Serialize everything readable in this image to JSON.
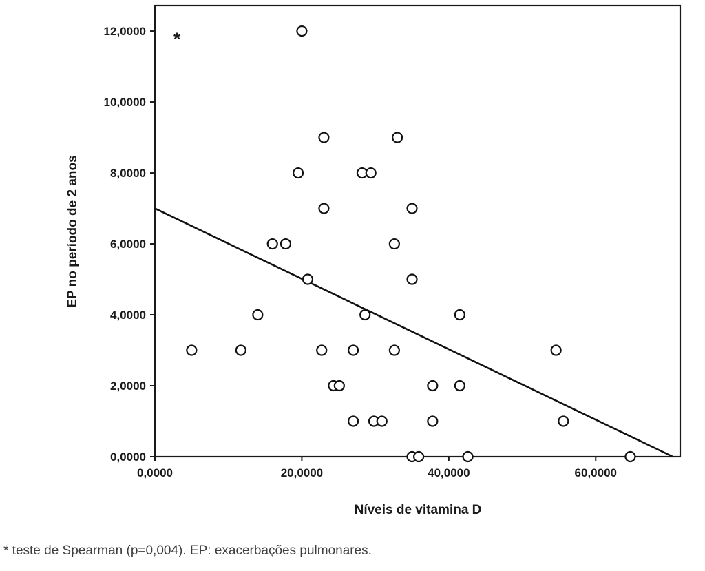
{
  "page": {
    "background": "#ffffff",
    "footnote": "* teste de Spearman (p=0,004). EP: exacerbações pulmonares."
  },
  "chart_data": {
    "type": "scatter",
    "title": "",
    "xlabel": "Níveis de vitamina D",
    "ylabel": "EP no período de 2 anos",
    "xlim": [
      0,
      71.5
    ],
    "ylim": [
      0,
      12.72
    ],
    "grid": false,
    "legend": "none",
    "x_ticks": [
      {
        "value": 0,
        "label": "0,0000"
      },
      {
        "value": 20,
        "label": "20,0000"
      },
      {
        "value": 40,
        "label": "40,0000"
      },
      {
        "value": 60,
        "label": "60,0000"
      }
    ],
    "y_ticks": [
      {
        "value": 0,
        "label": "0,0000"
      },
      {
        "value": 2,
        "label": "2,0000"
      },
      {
        "value": 4,
        "label": "4,0000"
      },
      {
        "value": 6,
        "label": "6,0000"
      },
      {
        "value": 8,
        "label": "8,0000"
      },
      {
        "value": 10,
        "label": "10,0000"
      },
      {
        "value": 12,
        "label": "12,0000"
      }
    ],
    "points": [
      [
        20,
        12
      ],
      [
        23,
        9
      ],
      [
        33,
        9
      ],
      [
        19.5,
        8
      ],
      [
        28.2,
        8
      ],
      [
        29.4,
        8
      ],
      [
        23,
        7
      ],
      [
        35,
        7
      ],
      [
        16,
        6
      ],
      [
        17.8,
        6
      ],
      [
        32.6,
        6
      ],
      [
        20.8,
        5
      ],
      [
        35,
        5
      ],
      [
        14,
        4
      ],
      [
        28.6,
        4
      ],
      [
        41.5,
        4
      ],
      [
        5,
        3
      ],
      [
        11.7,
        3
      ],
      [
        22.7,
        3
      ],
      [
        27,
        3
      ],
      [
        32.6,
        3
      ],
      [
        54.6,
        3
      ],
      [
        24.3,
        2
      ],
      [
        25.1,
        2
      ],
      [
        37.8,
        2
      ],
      [
        41.5,
        2
      ],
      [
        27,
        1
      ],
      [
        29.8,
        1
      ],
      [
        30.9,
        1
      ],
      [
        37.8,
        1
      ],
      [
        55.6,
        1
      ],
      [
        35,
        0
      ],
      [
        35.9,
        0
      ],
      [
        42.6,
        0
      ],
      [
        64.7,
        0
      ]
    ],
    "regression_line": {
      "x1": 0,
      "y1": 7.0,
      "x2": 70.5,
      "y2": 0
    },
    "annotation": {
      "text": "*",
      "x": 3,
      "y": 11.6
    },
    "marker": {
      "shape": "circle",
      "fill": "#ffffff",
      "stroke": "#111111",
      "radius": 7
    },
    "colors": {
      "axis": "#1a1a1a",
      "line": "#111111"
    }
  }
}
